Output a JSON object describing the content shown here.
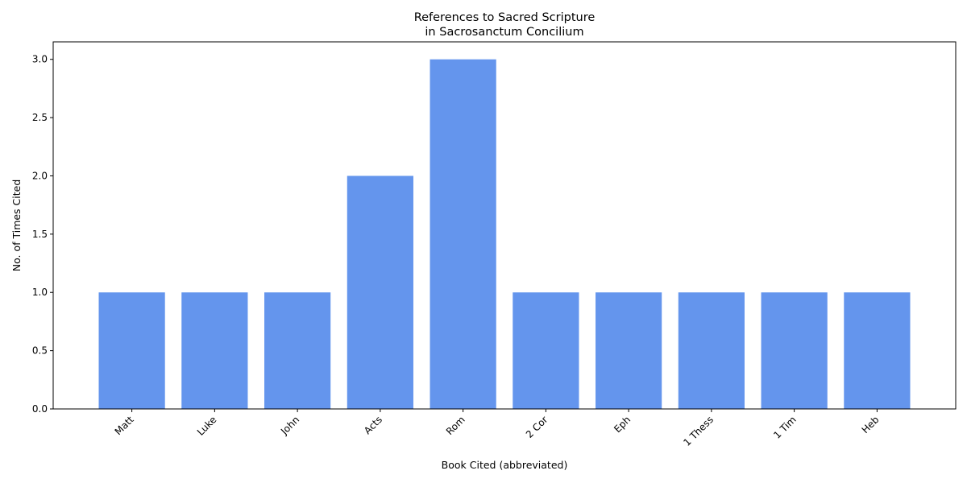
{
  "chart_data": {
    "type": "bar",
    "title_line1": "References to Sacred Scripture",
    "title_line2": "in Sacrosanctum Concilium",
    "xlabel": "Book Cited (abbreviated)",
    "ylabel": "No. of Times Cited",
    "categories": [
      "Matt",
      "Luke",
      "John",
      "Acts",
      "Rom",
      "2 Cor",
      "Eph",
      "1 Thess",
      "1 Tim",
      "Heb"
    ],
    "values": [
      1,
      1,
      1,
      2,
      3,
      1,
      1,
      1,
      1,
      1
    ],
    "ylim": [
      0,
      3.15
    ],
    "yticks": [
      "0.0",
      "0.5",
      "1.0",
      "1.5",
      "2.0",
      "2.5",
      "3.0"
    ],
    "bar_color": "#6495ED",
    "grid": false,
    "legend": "none"
  }
}
